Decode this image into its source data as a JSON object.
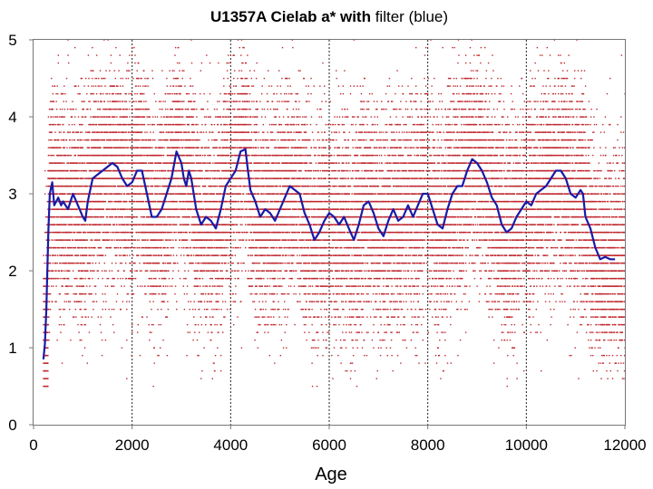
{
  "chart_data": {
    "type": "scatter",
    "title": {
      "parts": [
        {
          "text": "U1357A Cielab a* ",
          "bold": true
        },
        {
          "text": "with",
          "bold": true
        },
        {
          "text": " filter (blue)",
          "bold": false
        }
      ]
    },
    "xlabel": "Age",
    "ylabel": "",
    "xlim": [
      0,
      12000
    ],
    "ylim": [
      0,
      5
    ],
    "xticks": [
      0,
      2000,
      4000,
      6000,
      8000,
      10000,
      12000
    ],
    "yticks": [
      0,
      1,
      2,
      3,
      4,
      5
    ],
    "grid": "vertical dashed at x ticks",
    "series": [
      {
        "name": "",
        "kind": "scatter",
        "color": "#c0272d",
        "x_range": [
          200,
          12000
        ],
        "y_values": [
          0.5,
          0.6,
          0.7,
          0.8,
          0.9,
          1.0,
          1.1,
          1.2,
          1.3,
          1.4,
          1.5,
          1.6,
          1.7,
          1.8,
          1.9,
          2.0,
          2.1,
          2.2,
          2.3,
          2.4,
          2.5,
          2.6,
          2.7,
          2.8,
          2.9,
          3.0,
          3.1,
          3.2,
          3.3,
          3.4,
          3.5,
          3.6,
          3.7,
          3.8,
          3.9,
          4.0,
          4.1,
          4.2,
          4.3,
          4.4,
          4.5,
          4.6,
          4.7,
          4.8,
          4.9,
          5.0
        ]
      },
      {
        "name": "",
        "kind": "line",
        "color": "#1a1aa6",
        "points": [
          [
            200,
            0.85
          ],
          [
            230,
            1.05
          ],
          [
            260,
            1.5
          ],
          [
            300,
            2.5
          ],
          [
            330,
            3.0
          ],
          [
            380,
            3.15
          ],
          [
            420,
            2.85
          ],
          [
            500,
            2.95
          ],
          [
            560,
            2.85
          ],
          [
            600,
            2.9
          ],
          [
            700,
            2.8
          ],
          [
            800,
            3.0
          ],
          [
            900,
            2.85
          ],
          [
            1000,
            2.7
          ],
          [
            1050,
            2.65
          ],
          [
            1100,
            2.9
          ],
          [
            1200,
            3.2
          ],
          [
            1300,
            3.25
          ],
          [
            1400,
            3.3
          ],
          [
            1500,
            3.35
          ],
          [
            1600,
            3.4
          ],
          [
            1700,
            3.35
          ],
          [
            1800,
            3.2
          ],
          [
            1900,
            3.1
          ],
          [
            2000,
            3.15
          ],
          [
            2100,
            3.3
          ],
          [
            2200,
            3.3
          ],
          [
            2300,
            3.0
          ],
          [
            2400,
            2.7
          ],
          [
            2500,
            2.7
          ],
          [
            2600,
            2.8
          ],
          [
            2700,
            3.0
          ],
          [
            2800,
            3.2
          ],
          [
            2900,
            3.55
          ],
          [
            3000,
            3.4
          ],
          [
            3050,
            3.2
          ],
          [
            3100,
            3.1
          ],
          [
            3150,
            3.3
          ],
          [
            3200,
            3.2
          ],
          [
            3250,
            3.0
          ],
          [
            3300,
            2.8
          ],
          [
            3400,
            2.6
          ],
          [
            3500,
            2.7
          ],
          [
            3600,
            2.65
          ],
          [
            3700,
            2.55
          ],
          [
            3800,
            2.8
          ],
          [
            3900,
            3.1
          ],
          [
            4000,
            3.2
          ],
          [
            4100,
            3.3
          ],
          [
            4200,
            3.55
          ],
          [
            4300,
            3.58
          ],
          [
            4350,
            3.3
          ],
          [
            4400,
            3.05
          ],
          [
            4500,
            2.9
          ],
          [
            4600,
            2.7
          ],
          [
            4700,
            2.8
          ],
          [
            4800,
            2.75
          ],
          [
            4900,
            2.65
          ],
          [
            5000,
            2.8
          ],
          [
            5100,
            2.95
          ],
          [
            5200,
            3.1
          ],
          [
            5300,
            3.05
          ],
          [
            5400,
            3.0
          ],
          [
            5500,
            2.75
          ],
          [
            5600,
            2.6
          ],
          [
            5700,
            2.4
          ],
          [
            5800,
            2.5
          ],
          [
            5900,
            2.65
          ],
          [
            6000,
            2.75
          ],
          [
            6100,
            2.7
          ],
          [
            6200,
            2.6
          ],
          [
            6300,
            2.7
          ],
          [
            6400,
            2.55
          ],
          [
            6500,
            2.4
          ],
          [
            6600,
            2.6
          ],
          [
            6700,
            2.85
          ],
          [
            6800,
            2.9
          ],
          [
            6900,
            2.75
          ],
          [
            7000,
            2.55
          ],
          [
            7100,
            2.45
          ],
          [
            7200,
            2.65
          ],
          [
            7300,
            2.8
          ],
          [
            7400,
            2.65
          ],
          [
            7500,
            2.7
          ],
          [
            7600,
            2.85
          ],
          [
            7700,
            2.7
          ],
          [
            7800,
            2.85
          ],
          [
            7900,
            3.0
          ],
          [
            8000,
            3.0
          ],
          [
            8100,
            2.8
          ],
          [
            8200,
            2.6
          ],
          [
            8300,
            2.55
          ],
          [
            8400,
            2.8
          ],
          [
            8500,
            3.0
          ],
          [
            8600,
            3.1
          ],
          [
            8700,
            3.1
          ],
          [
            8800,
            3.3
          ],
          [
            8900,
            3.45
          ],
          [
            9000,
            3.4
          ],
          [
            9100,
            3.3
          ],
          [
            9200,
            3.15
          ],
          [
            9300,
            2.95
          ],
          [
            9400,
            2.85
          ],
          [
            9500,
            2.6
          ],
          [
            9600,
            2.5
          ],
          [
            9700,
            2.55
          ],
          [
            9800,
            2.7
          ],
          [
            9900,
            2.8
          ],
          [
            10000,
            2.9
          ],
          [
            10100,
            2.85
          ],
          [
            10200,
            3.0
          ],
          [
            10300,
            3.05
          ],
          [
            10400,
            3.1
          ],
          [
            10500,
            3.2
          ],
          [
            10600,
            3.3
          ],
          [
            10700,
            3.3
          ],
          [
            10800,
            3.2
          ],
          [
            10900,
            3.0
          ],
          [
            11000,
            2.95
          ],
          [
            11100,
            3.05
          ],
          [
            11150,
            3.0
          ],
          [
            11200,
            2.7
          ],
          [
            11300,
            2.55
          ],
          [
            11400,
            2.3
          ],
          [
            11500,
            2.15
          ],
          [
            11600,
            2.18
          ],
          [
            11700,
            2.15
          ],
          [
            11800,
            2.15
          ]
        ]
      }
    ]
  }
}
